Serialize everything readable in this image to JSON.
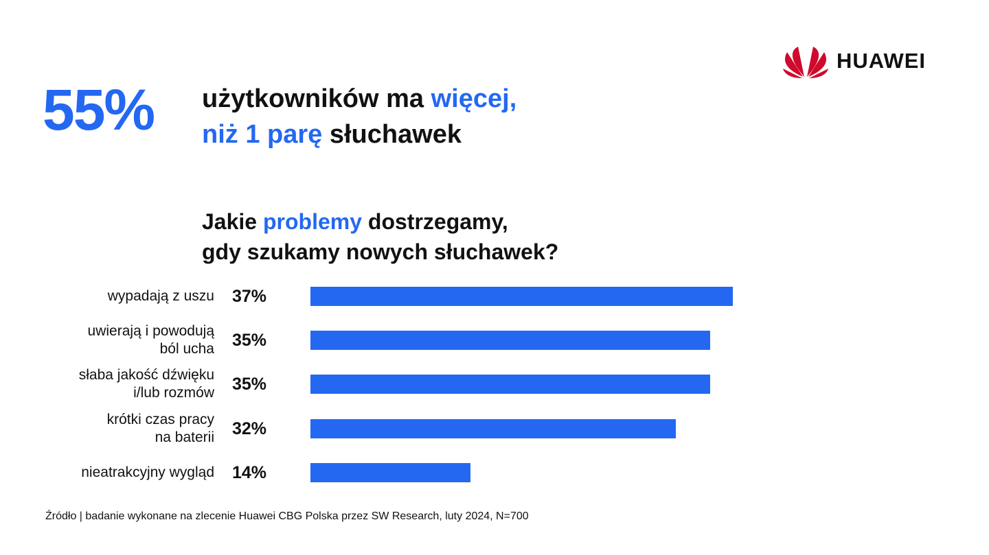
{
  "headline": {
    "stat": "55%",
    "line1_part1": "użytkowników ma ",
    "line1_part2": "więcej,",
    "line2_part1": "niż 1 parę",
    "line2_part2": " słuchawek"
  },
  "logo": {
    "text": "HUAWEI"
  },
  "question": {
    "line1_part1": "Jakie ",
    "line1_part2": "problemy",
    "line1_part3": " dostrzegamy,",
    "line2": "gdy szukamy nowych słuchawek?"
  },
  "colors": {
    "accent": "#2468F2",
    "text": "#111111",
    "logo": "#CF0A2C"
  },
  "chart_data": {
    "type": "bar",
    "orientation": "horizontal",
    "categories": [
      "wypadają z uszu",
      "uwierają i powodują ból ucha",
      "słaba jakość dźwięku i/lub rozmów",
      "krótki czas pracy na baterii",
      "nieatrakcyjny wygląd"
    ],
    "category_lines": [
      [
        "wypadają z uszu"
      ],
      [
        "uwierają i powodują",
        "ból ucha"
      ],
      [
        "słaba jakość dźwięku",
        "i/lub rozmów"
      ],
      [
        "krótki czas pracy",
        "na baterii"
      ],
      [
        "nieatrakcyjny wygląd"
      ]
    ],
    "values": [
      37,
      35,
      35,
      32,
      14
    ],
    "value_labels": [
      "37%",
      "35%",
      "35%",
      "32%",
      "14%"
    ],
    "xlim": [
      0,
      37
    ],
    "grid": false,
    "legend": "none"
  },
  "source": "Źródło | badanie wykonane na zlecenie Huawei CBG Polska przez SW Research, luty 2024, N=700"
}
